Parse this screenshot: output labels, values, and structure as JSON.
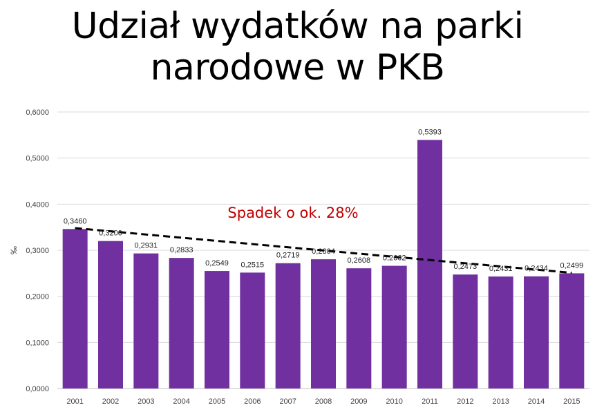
{
  "chart_data": {
    "type": "bar",
    "title": "Udział wydatków na parki narodowe w PKB",
    "title_lines": [
      "Udział wydatków na parki",
      "narodowe w PKB"
    ],
    "xlabel": "",
    "ylabel": "‰",
    "ylim": [
      0,
      0.6
    ],
    "yticks": [
      0,
      0.1,
      0.2,
      0.3,
      0.4,
      0.5,
      0.6
    ],
    "ytick_labels": [
      "0,0000",
      "0,1000",
      "0,2000",
      "0,3000",
      "0,4000",
      "0,5000",
      "0,6000"
    ],
    "categories": [
      "2001",
      "2002",
      "2003",
      "2004",
      "2005",
      "2006",
      "2007",
      "2008",
      "2009",
      "2010",
      "2011",
      "2012",
      "2013",
      "2014",
      "2015"
    ],
    "values": [
      0.346,
      0.32,
      0.2931,
      0.2833,
      0.2549,
      0.2515,
      0.2719,
      0.2804,
      0.2608,
      0.2662,
      0.5393,
      0.2473,
      0.2431,
      0.2434,
      0.2499
    ],
    "value_labels": [
      "0,3460",
      "0,3200",
      "0,2931",
      "0,2833",
      "0,2549",
      "0,2515",
      "0,2719",
      "0,2804",
      "0,2608",
      "0,2662",
      "0,5393",
      "0,2473",
      "0,2431",
      "0,2434",
      "0,2499"
    ],
    "trendline": {
      "type": "linear",
      "start": 0.348,
      "end": 0.251,
      "style": "dashed",
      "color": "#000000"
    },
    "grid": true,
    "legend": "none",
    "annotation": {
      "text": "Spadek o ok. 28%",
      "color": "#c00000"
    },
    "colors": {
      "bar": "#7030a0",
      "grid": "#d9d9d9",
      "axis": "#bfbfbf"
    }
  }
}
